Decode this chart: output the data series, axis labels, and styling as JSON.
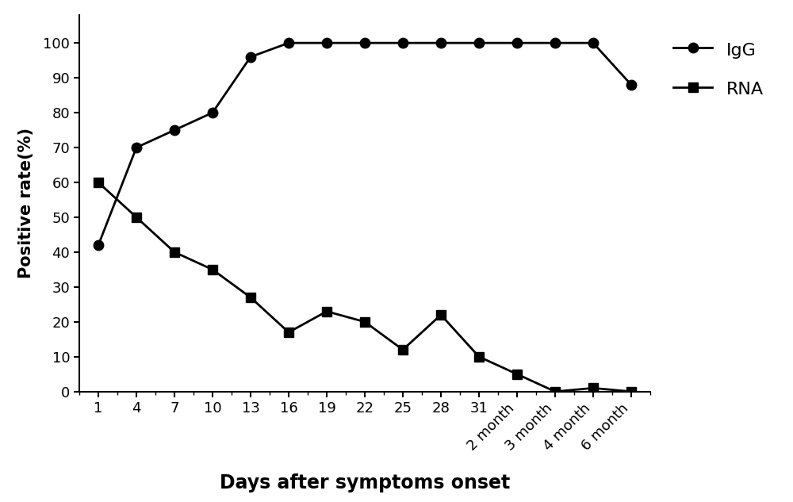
{
  "x_labels": [
    "1",
    "4",
    "7",
    "10",
    "13",
    "16",
    "19",
    "22",
    "25",
    "28",
    "31",
    "2 month",
    "3 month",
    "4 month",
    "6 month"
  ],
  "x_positions": [
    0,
    1,
    2,
    3,
    4,
    5,
    6,
    7,
    8,
    9,
    10,
    11,
    12,
    13,
    14
  ],
  "IgG_y": [
    42,
    70,
    75,
    80,
    96,
    100,
    100,
    100,
    100,
    100,
    100,
    100,
    100,
    100,
    88
  ],
  "RNA_y": [
    60,
    50,
    40,
    35,
    27,
    17,
    23,
    20,
    12,
    22,
    10,
    5,
    0,
    1,
    0
  ],
  "ylabel": "Positive rate(%)",
  "xlabel": "Days after symptoms onset",
  "ylim": [
    0,
    108
  ],
  "yticks": [
    0,
    10,
    20,
    30,
    40,
    50,
    60,
    70,
    80,
    90,
    100
  ],
  "legend_IgG": "IgG",
  "legend_RNA": "RNA",
  "line_color": "#000000",
  "background_color": "#ffffff",
  "xlabel_fontsize": 17,
  "ylabel_fontsize": 15,
  "tick_fontsize": 13,
  "legend_fontsize": 16,
  "linewidth": 2.0,
  "marker_size_circle": 9,
  "marker_size_square": 8
}
